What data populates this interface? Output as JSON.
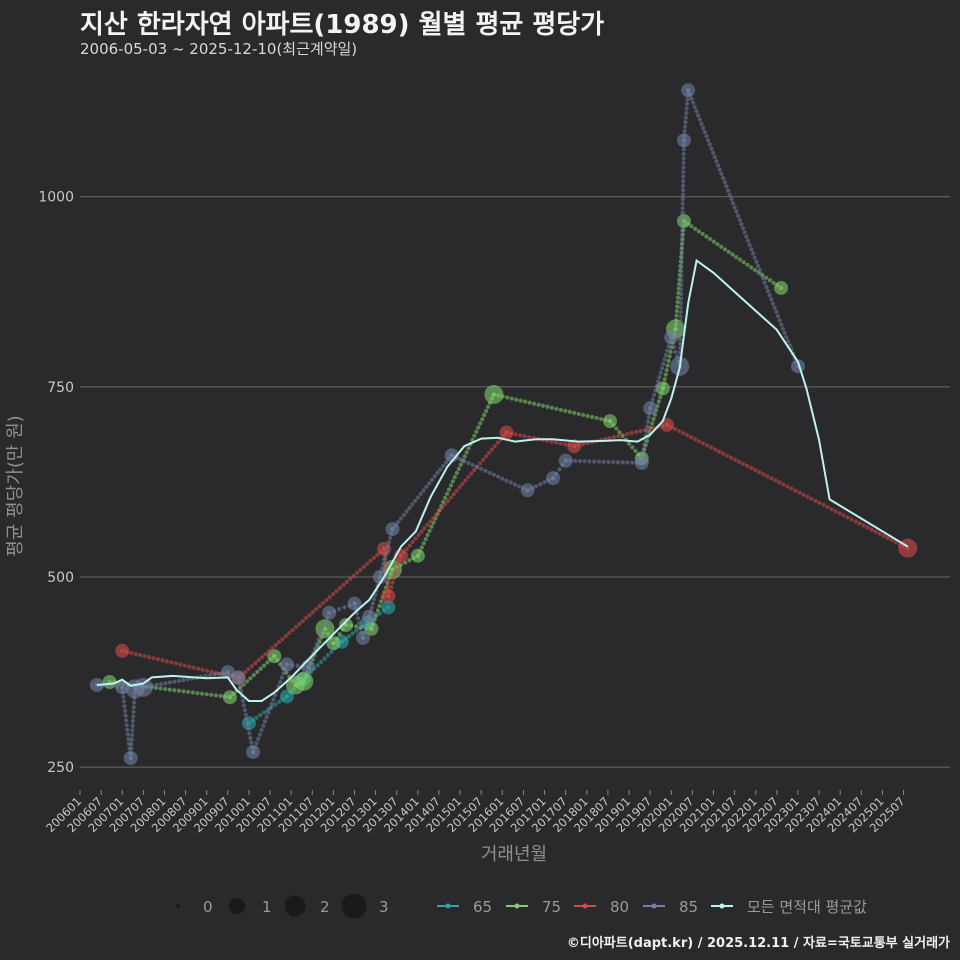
{
  "title": "지산 한라자연 아파트(1989) 월별 평균 평당가",
  "subtitle": "2006-05-03 ~ 2025-12-10(최근계약일)",
  "caption": "©디아파트(dapt.kr) / 2025.12.11 / 자료=국토교통부 실거래가",
  "colors": {
    "background": "#2a2a2c",
    "grid": "#6a6a6a",
    "s65": "#2aa6a6",
    "s75": "#7fcf6a",
    "s80": "#d24a4a",
    "s85": "#7080a0",
    "avg": "#bff2ee"
  },
  "chart_data": {
    "type": "line",
    "title": "지산 한라자연 아파트(1989) 월별 평균 평당가",
    "xlabel": "거래년월",
    "ylabel": "평균 평당가(만 원)",
    "ylim": [
      220,
      1160
    ],
    "yticks": [
      250,
      500,
      750,
      1000
    ],
    "xlim": [
      2006.0,
      2026.6
    ],
    "xticks": [
      "200601",
      "200607",
      "200701",
      "200707",
      "200801",
      "200807",
      "200901",
      "200907",
      "201001",
      "201007",
      "201101",
      "201107",
      "201201",
      "201207",
      "201301",
      "201307",
      "201401",
      "201407",
      "201501",
      "201507",
      "201601",
      "201607",
      "201701",
      "201707",
      "201801",
      "201807",
      "201901",
      "201907",
      "202001",
      "202007",
      "202101",
      "202107",
      "202201",
      "202207",
      "202301",
      "202307",
      "202401",
      "202407",
      "202501",
      "202507"
    ],
    "size_legend": {
      "title": "",
      "values": [
        "0",
        "1",
        "2",
        "3"
      ]
    },
    "series": [
      {
        "name": "65",
        "points": [
          [
            2010.0,
            308,
            1
          ],
          [
            2010.9,
            343,
            1
          ],
          [
            2011.3,
            366,
            1
          ],
          [
            2012.2,
            415,
            1
          ],
          [
            2012.8,
            440,
            1
          ],
          [
            2013.3,
            460,
            1
          ]
        ]
      },
      {
        "name": "75",
        "points": [
          [
            2006.7,
            362,
            1
          ],
          [
            2009.55,
            342,
            1
          ],
          [
            2010.6,
            396,
            1
          ],
          [
            2011.1,
            358,
            2
          ],
          [
            2011.3,
            363,
            2
          ],
          [
            2011.8,
            432,
            2
          ],
          [
            2012.0,
            413,
            1
          ],
          [
            2012.3,
            437,
            1
          ],
          [
            2012.9,
            432,
            1
          ],
          [
            2013.4,
            510,
            2
          ],
          [
            2014.0,
            528,
            1
          ],
          [
            2015.8,
            740,
            2
          ],
          [
            2018.55,
            705,
            1
          ],
          [
            2019.3,
            656,
            1
          ],
          [
            2019.8,
            748,
            1
          ],
          [
            2020.1,
            826,
            2
          ],
          [
            2020.3,
            968,
            1
          ],
          [
            2022.6,
            880,
            1
          ]
        ]
      },
      {
        "name": "80",
        "points": [
          [
            2007.0,
            403,
            1
          ],
          [
            2009.75,
            367,
            1
          ],
          [
            2013.3,
            475,
            1
          ],
          [
            2013.6,
            528,
            1
          ],
          [
            2013.2,
            537,
            1
          ],
          [
            2016.1,
            690,
            1
          ],
          [
            2017.7,
            672,
            1
          ],
          [
            2019.9,
            700,
            1
          ],
          [
            2025.6,
            538,
            2
          ]
        ]
      },
      {
        "name": "85",
        "points": [
          [
            2006.4,
            358,
            1
          ],
          [
            2007.0,
            355,
            1
          ],
          [
            2007.2,
            262,
            1
          ],
          [
            2007.3,
            353,
            2
          ],
          [
            2007.5,
            355,
            2
          ],
          [
            2009.5,
            375,
            1
          ],
          [
            2009.75,
            368,
            1
          ],
          [
            2010.1,
            270,
            1
          ],
          [
            2010.9,
            385,
            1
          ],
          [
            2011.4,
            382,
            1
          ],
          [
            2011.9,
            453,
            1
          ],
          [
            2012.5,
            465,
            1
          ],
          [
            2012.7,
            420,
            1
          ],
          [
            2012.85,
            448,
            1
          ],
          [
            2013.1,
            500,
            1
          ],
          [
            2013.4,
            563,
            1
          ],
          [
            2014.8,
            660,
            1
          ],
          [
            2016.6,
            614,
            1
          ],
          [
            2017.2,
            630,
            1
          ],
          [
            2017.5,
            653,
            1
          ],
          [
            2019.3,
            650,
            1
          ],
          [
            2019.5,
            722,
            1
          ],
          [
            2020.0,
            815,
            1
          ],
          [
            2020.2,
            777,
            2
          ],
          [
            2020.3,
            1074,
            1
          ],
          [
            2020.4,
            1140,
            1
          ],
          [
            2023.0,
            777,
            1
          ]
        ]
      },
      {
        "name": "모든 면적대 평균값",
        "points": [
          [
            2006.4,
            358
          ],
          [
            2006.8,
            360
          ],
          [
            2007.0,
            365
          ],
          [
            2007.2,
            357
          ],
          [
            2007.5,
            360
          ],
          [
            2007.7,
            368
          ],
          [
            2008.2,
            370
          ],
          [
            2009.0,
            367
          ],
          [
            2009.5,
            368
          ],
          [
            2009.7,
            352
          ],
          [
            2010.0,
            337
          ],
          [
            2010.3,
            337
          ],
          [
            2010.6,
            348
          ],
          [
            2011.0,
            368
          ],
          [
            2011.5,
            397
          ],
          [
            2012.0,
            425
          ],
          [
            2012.5,
            453
          ],
          [
            2012.85,
            470
          ],
          [
            2013.2,
            500
          ],
          [
            2013.6,
            540
          ],
          [
            2013.95,
            560
          ],
          [
            2014.3,
            605
          ],
          [
            2014.7,
            645
          ],
          [
            2015.1,
            672
          ],
          [
            2015.5,
            682
          ],
          [
            2015.9,
            683
          ],
          [
            2016.3,
            678
          ],
          [
            2016.8,
            681
          ],
          [
            2017.2,
            681
          ],
          [
            2017.8,
            678
          ],
          [
            2018.4,
            679
          ],
          [
            2018.8,
            680
          ],
          [
            2019.2,
            678
          ],
          [
            2019.5,
            687
          ],
          [
            2019.8,
            705
          ],
          [
            2020.0,
            735
          ],
          [
            2020.2,
            775
          ],
          [
            2020.4,
            860
          ],
          [
            2020.6,
            916
          ],
          [
            2021.0,
            900
          ],
          [
            2021.6,
            870
          ],
          [
            2022.5,
            825
          ],
          [
            2023.0,
            783
          ],
          [
            2023.2,
            748
          ],
          [
            2023.5,
            680
          ],
          [
            2023.75,
            602
          ],
          [
            2025.6,
            540
          ]
        ]
      }
    ],
    "legend": [
      "65",
      "75",
      "80",
      "85",
      "모든 면적대 평균값"
    ]
  }
}
